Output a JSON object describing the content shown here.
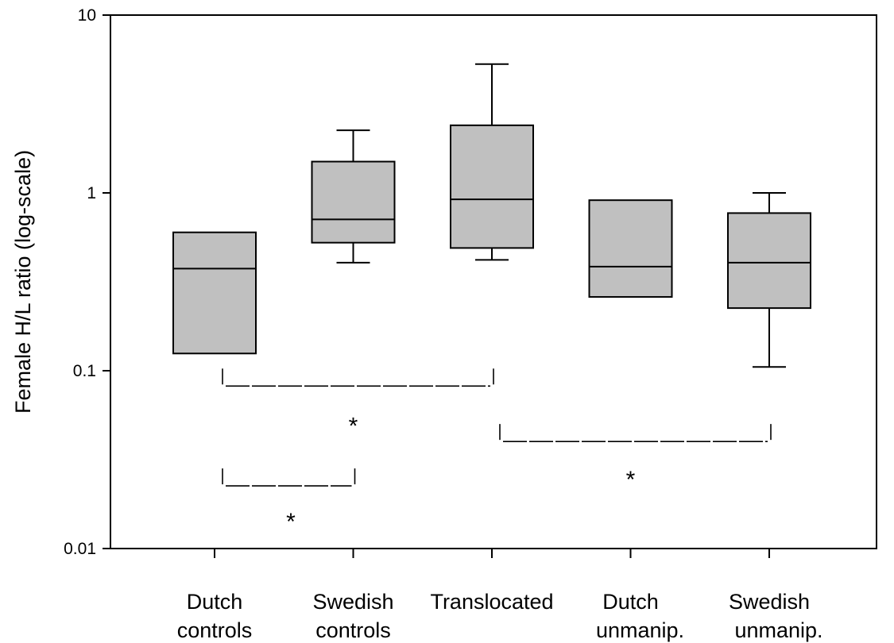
{
  "chart_data": {
    "type": "box",
    "y_axis": {
      "label": "Female H/L ratio (log-scale)",
      "scale": "log",
      "range": [
        0.01,
        10
      ],
      "ticks": [
        {
          "value": 0.01,
          "label": "0.01"
        },
        {
          "value": 0.1,
          "label": "0.1"
        },
        {
          "value": 1,
          "label": "1"
        },
        {
          "value": 10,
          "label": "10"
        }
      ]
    },
    "categories": [
      {
        "line1": "Dutch",
        "line2": "controls"
      },
      {
        "line1": "Swedish",
        "line2": "controls"
      },
      {
        "line1": "Translocated",
        "line2": ""
      },
      {
        "line1": "Dutch",
        "line2": "unmanip."
      },
      {
        "line1": "Swedish",
        "line2": "unmanip."
      }
    ],
    "boxes": [
      {
        "q1": 0.125,
        "median": 0.375,
        "q3": 0.6,
        "whisker_low": null,
        "whisker_high": null
      },
      {
        "q1": 0.525,
        "median": 0.71,
        "q3": 1.5,
        "whisker_low": 0.405,
        "whisker_high": 2.25
      },
      {
        "q1": 0.49,
        "median": 0.92,
        "q3": 2.4,
        "whisker_low": 0.42,
        "whisker_high": 5.3
      },
      {
        "q1": 0.26,
        "median": 0.385,
        "q3": 0.91,
        "whisker_low": null,
        "whisker_high": null
      },
      {
        "q1": 0.225,
        "median": 0.405,
        "q3": 0.77,
        "whisker_low": 0.105,
        "whisker_high": 1.0
      }
    ],
    "box_color": "#c0c0c0",
    "grid": false,
    "significance": [
      {
        "from": 0,
        "to": 2,
        "y": 0.082,
        "star_y": 0.05,
        "star_x": 1.0,
        "label": "*"
      },
      {
        "from": 2,
        "to": 4,
        "y": 0.04,
        "star_y": 0.025,
        "star_x": 3.0,
        "label": "*"
      },
      {
        "from": 0,
        "to": 1,
        "y": 0.0225,
        "star_y": 0.0145,
        "star_x": 0.55,
        "label": "*"
      }
    ]
  }
}
